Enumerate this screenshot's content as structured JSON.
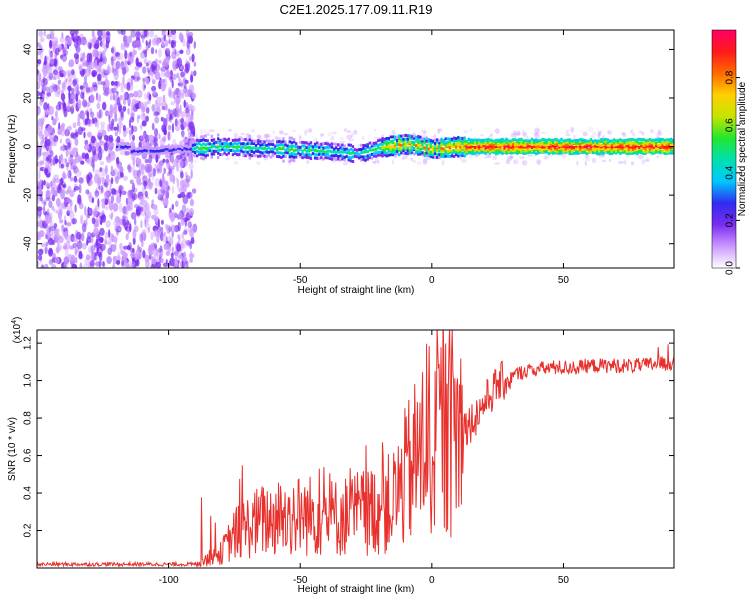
{
  "title": "C2E1.2025.177.09.11.R19",
  "colors": {
    "background": "#ffffff",
    "snr_line": "#e8302c",
    "colormap": [
      "#ffffff",
      "#cc99ff",
      "#7b2cf0",
      "#2f2cf0",
      "#00c8ff",
      "#00e0b0",
      "#22e62e",
      "#c6e400",
      "#ffd000",
      "#ff6a00",
      "#ff1a1a",
      "#ff0066"
    ]
  },
  "chart_data": [
    {
      "type": "heatmap",
      "xlabel": "Height of straight line (km)",
      "ylabel": "Frequency (Hz)",
      "xlim": [
        -150,
        92
      ],
      "ylim": [
        -50,
        48
      ],
      "xticks": [
        -100,
        -50,
        0,
        50
      ],
      "yticks": [
        -40,
        -20,
        0,
        20,
        40
      ],
      "colorbar": {
        "label": "Normalized spectral amplitude",
        "range": [
          0.0,
          1.0
        ],
        "ticks": [
          0.0,
          0.2,
          0.4,
          0.6,
          0.8
        ]
      },
      "band_center_hz": [
        {
          "x": -115,
          "hz": -2
        },
        {
          "x": -95,
          "hz": -1
        },
        {
          "x": -80,
          "hz": 0
        },
        {
          "x": -60,
          "hz": -1
        },
        {
          "x": -40,
          "hz": -2
        },
        {
          "x": -28,
          "hz": -3
        },
        {
          "x": -18,
          "hz": 0
        },
        {
          "x": -8,
          "hz": 1
        },
        {
          "x": 0,
          "hz": -1
        },
        {
          "x": 10,
          "hz": 0
        },
        {
          "x": 20,
          "hz": 0
        },
        {
          "x": 50,
          "hz": 0
        },
        {
          "x": 90,
          "hz": 0
        }
      ]
    },
    {
      "type": "line",
      "xlabel": "Height of straight line (km)",
      "ylabel": "SNR (10 * v/v)",
      "y_scale_label": "(x10",
      "y_scale_exponent": "4",
      "y_scale_suffix": ")",
      "xlim": [
        -150,
        92
      ],
      "ylim": [
        0.0,
        1.27
      ],
      "xticks": [
        -100,
        -50,
        0,
        50
      ],
      "yticks": [
        0.2,
        0.4,
        0.6,
        0.8,
        1.0,
        1.2
      ],
      "x": [
        -150,
        -130,
        -110,
        -100,
        -90,
        -85,
        -80,
        -75,
        -70,
        -65,
        -60,
        -55,
        -50,
        -45,
        -40,
        -35,
        -30,
        -25,
        -20,
        -15,
        -10,
        -5,
        0,
        5,
        10,
        15,
        20,
        25,
        30,
        35,
        40,
        45,
        50,
        55,
        60,
        65,
        70,
        75,
        80,
        85,
        90,
        92
      ],
      "y": [
        0.02,
        0.02,
        0.02,
        0.02,
        0.02,
        0.05,
        0.08,
        0.18,
        0.22,
        0.25,
        0.26,
        0.27,
        0.28,
        0.28,
        0.27,
        0.27,
        0.29,
        0.3,
        0.32,
        0.35,
        0.48,
        0.6,
        0.72,
        0.72,
        0.74,
        0.78,
        0.88,
        0.98,
        1.02,
        1.05,
        1.06,
        1.07,
        1.07,
        1.07,
        1.08,
        1.08,
        1.08,
        1.08,
        1.08,
        1.09,
        1.09,
        1.1
      ]
    }
  ]
}
